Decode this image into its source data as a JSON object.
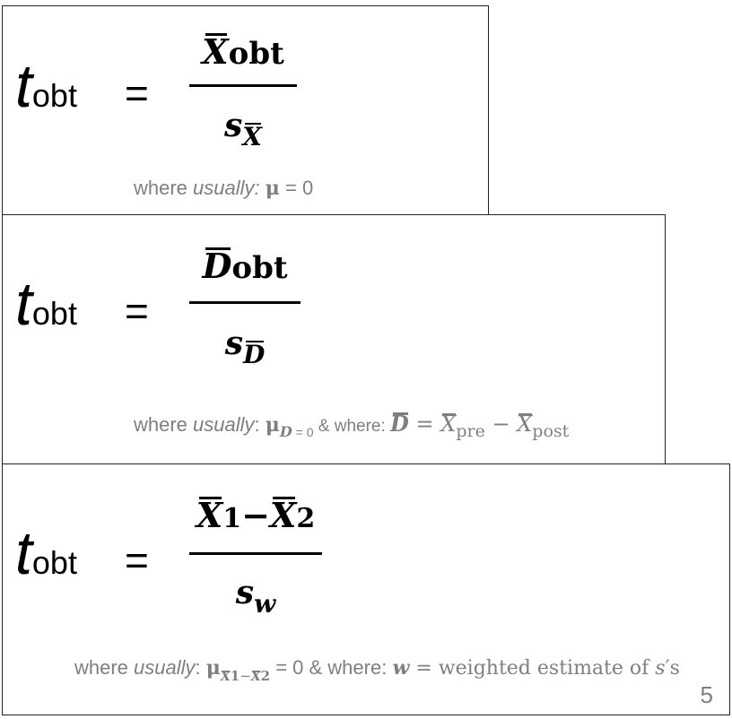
{
  "formulas": [
    {
      "lhs_t": "t",
      "lhs_sub": "obt",
      "equals": "=",
      "num_var": "X",
      "num_sub": "obt",
      "den_var": "s",
      "den_sub_var": "X",
      "note": {
        "where": "where ",
        "usually": "usually:",
        "mu": "μ",
        "rest": " = 0"
      }
    },
    {
      "lhs_t": "t",
      "lhs_sub": "obt",
      "equals": "=",
      "num_var": "D",
      "num_sub": "obt",
      "den_var": "s",
      "den_sub_var": "D",
      "note": {
        "where": "where ",
        "usually": "usually",
        "colon": ": ",
        "mu": "μ",
        "mu_sub_var": "D",
        "mu_sub_rest": " = 0",
        "and_where": " & where: ",
        "d_var": "D",
        "eq": " = ",
        "x1": "X",
        "x1_sub": "pre",
        "minus": " − ",
        "x2": "X",
        "x2_sub": "post"
      }
    },
    {
      "lhs_t": "t",
      "lhs_sub": "obt",
      "equals": "=",
      "num_x1": "X",
      "num_x1_sub": "1",
      "num_minus": "−",
      "num_x2": "X",
      "num_x2_sub": "2",
      "den_var": "s",
      "den_sub_var": "w",
      "note": {
        "where": "where ",
        "usually": "usually",
        "colon": ": ",
        "mu": "μ",
        "mu_sub_x1": "X",
        "mu_sub_1": "1",
        "mu_sub_minus": "−",
        "mu_sub_x2": "X",
        "mu_sub_2": "2",
        "rest": " = 0 & where: ",
        "w_var": "w",
        "w_rest": " = weighted estimate of ",
        "s_var": "s",
        "apos_rest": "′s"
      }
    }
  ],
  "page_number": "5"
}
